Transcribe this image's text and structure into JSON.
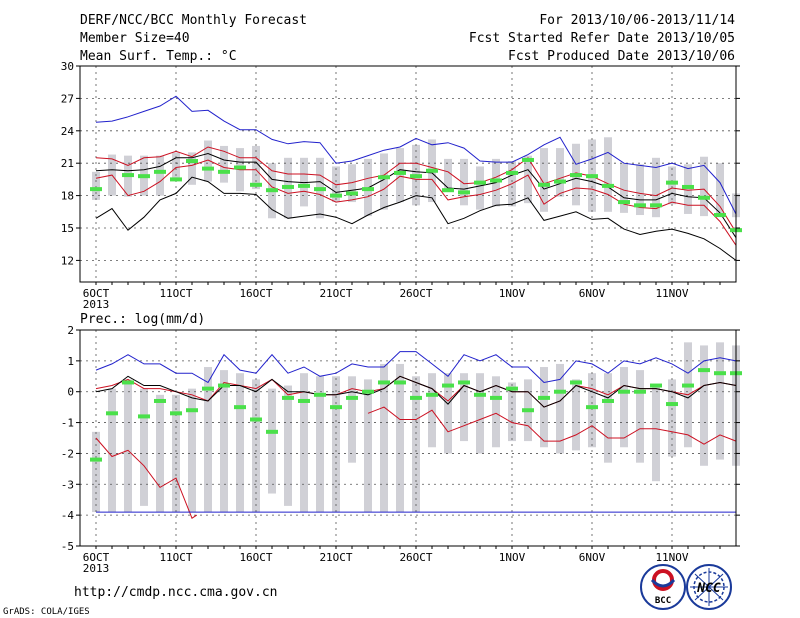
{
  "header": {
    "title_left": "DERF/NCC/BCC Monthly Forecast",
    "member_size": "Member Size=40",
    "title_right": "For 2013/10/06-2013/11/14",
    "fcst_started": "Fcst Started Refer Date 2013/10/05",
    "fcst_produced": "Fcst Produced Date 2013/10/06"
  },
  "footer": {
    "url": "http://cmdp.ncc.cma.gov.cn",
    "grads": "GrADS: COLA/IGES",
    "logo_bcc": "BCC",
    "logo_ncc": "NCC"
  },
  "colors": {
    "box": "#d0d0d6",
    "observed": "#4ae04a",
    "max_line": "#2222cc",
    "spread_line": "#cc1122",
    "mean_line": "#000000",
    "grid": "#555555"
  },
  "chart_data": [
    {
      "type": "line",
      "title": "Mean Surf. Temp.: °C",
      "ylim": [
        10,
        30
      ],
      "yticks": [
        12,
        15,
        18,
        21,
        24,
        27,
        30
      ],
      "x_labels": [
        {
          "day": 1,
          "text": "6OCT",
          "sub": "2013"
        },
        {
          "day": 6,
          "text": "11OCT"
        },
        {
          "day": 11,
          "text": "16OCT"
        },
        {
          "day": 16,
          "text": "21OCT"
        },
        {
          "day": 21,
          "text": "26OCT"
        },
        {
          "day": 27,
          "text": "1NOV"
        },
        {
          "day": 32,
          "text": "6NOV"
        },
        {
          "day": 37,
          "text": "11NOV"
        }
      ],
      "x_range": [
        0,
        41
      ],
      "boxes": [
        [
          17.6,
          20.2
        ],
        [
          18.0,
          21.8
        ],
        [
          17.9,
          21.7
        ],
        [
          18.0,
          21.7
        ],
        [
          18.0,
          21.7
        ],
        [
          19.5,
          22.0
        ],
        [
          19.0,
          22.0
        ],
        [
          19.3,
          23.1
        ],
        [
          19.2,
          22.6
        ],
        [
          18.4,
          22.4
        ],
        [
          18.6,
          22.6
        ],
        [
          15.9,
          21.0
        ],
        [
          15.9,
          21.5
        ],
        [
          17.0,
          21.5
        ],
        [
          15.9,
          21.5
        ],
        [
          17.4,
          20.7
        ],
        [
          17.4,
          20.9
        ],
        [
          16.1,
          21.4
        ],
        [
          16.7,
          21.9
        ],
        [
          17.4,
          22.4
        ],
        [
          17.1,
          22.7
        ],
        [
          17.4,
          23.2
        ],
        [
          18.6,
          21.4
        ],
        [
          17.1,
          21.4
        ],
        [
          16.7,
          20.7
        ],
        [
          17.0,
          21.4
        ],
        [
          17.0,
          21.2
        ],
        [
          17.3,
          21.7
        ],
        [
          16.5,
          22.4
        ],
        [
          17.9,
          22.4
        ],
        [
          17.1,
          22.8
        ],
        [
          16.5,
          23.2
        ],
        [
          16.5,
          23.4
        ],
        [
          16.4,
          21.0
        ],
        [
          16.2,
          20.9
        ],
        [
          16.0,
          21.5
        ],
        [
          17.2,
          20.7
        ],
        [
          16.3,
          20.9
        ],
        [
          16.1,
          21.6
        ],
        [
          16.0,
          21.0
        ],
        [
          16.0,
          18.2
        ]
      ],
      "series": [
        {
          "role": "ensemble-max",
          "values": [
            24.8,
            24.9,
            25.3,
            25.8,
            26.3,
            27.2,
            25.8,
            25.9,
            24.9,
            24.1,
            24.1,
            23.2,
            22.8,
            23.0,
            22.9,
            21.0,
            21.2,
            21.7,
            22.2,
            22.5,
            23.3,
            22.7,
            22.9,
            22.4,
            21.2,
            21.1,
            21.1,
            21.8,
            22.7,
            23.4,
            20.9,
            21.4,
            22.0,
            21.0,
            20.8,
            20.6,
            21.0,
            20.5,
            20.8,
            19.2,
            16.3
          ]
        },
        {
          "role": "ensemble-upper",
          "values": [
            21.5,
            21.4,
            20.8,
            21.5,
            21.6,
            22.1,
            21.6,
            22.5,
            22.1,
            21.5,
            21.5,
            20.3,
            20.0,
            20.0,
            19.9,
            19.0,
            19.2,
            19.6,
            19.9,
            21.0,
            21.0,
            20.6,
            20.2,
            19.1,
            19.2,
            19.7,
            20.4,
            21.5,
            19.1,
            19.6,
            20.1,
            19.8,
            19.1,
            18.5,
            18.2,
            18.0,
            18.7,
            18.5,
            18.6,
            17.0,
            14.6
          ]
        },
        {
          "role": "ensemble-mean",
          "values": [
            20.3,
            20.4,
            20.3,
            20.4,
            20.7,
            21.5,
            21.5,
            21.9,
            21.3,
            21.1,
            21.1,
            19.5,
            19.3,
            19.2,
            19.3,
            18.3,
            18.5,
            18.7,
            19.5,
            20.4,
            20.2,
            20.1,
            18.7,
            18.6,
            18.9,
            19.2,
            19.9,
            20.4,
            18.6,
            19.1,
            19.6,
            19.3,
            18.8,
            17.8,
            17.6,
            17.6,
            18.2,
            17.9,
            17.8,
            16.4,
            14.1
          ]
        },
        {
          "role": "ensemble-lower",
          "values": [
            19.6,
            19.9,
            18.0,
            18.4,
            19.3,
            20.6,
            20.8,
            21.3,
            20.6,
            20.4,
            20.4,
            18.8,
            18.2,
            18.4,
            18.1,
            17.4,
            17.6,
            17.9,
            18.6,
            19.8,
            19.5,
            19.5,
            17.6,
            17.9,
            18.1,
            18.5,
            19.1,
            19.9,
            17.2,
            18.2,
            18.7,
            18.6,
            18.1,
            17.2,
            16.9,
            16.8,
            17.4,
            17.1,
            17.1,
            15.6,
            13.4
          ]
        },
        {
          "role": "ensemble-min",
          "values": [
            15.9,
            16.8,
            14.8,
            16.0,
            17.6,
            18.2,
            19.7,
            19.3,
            18.2,
            18.2,
            18.1,
            16.7,
            15.9,
            16.1,
            16.3,
            16.0,
            15.4,
            16.2,
            16.9,
            17.4,
            18.0,
            17.8,
            15.4,
            15.9,
            16.6,
            17.1,
            17.2,
            17.8,
            15.7,
            16.1,
            16.5,
            15.8,
            15.9,
            14.9,
            14.4,
            14.7,
            14.9,
            14.5,
            14.0,
            13.1,
            12.0
          ]
        }
      ],
      "observed": [
        18.6,
        null,
        19.9,
        19.8,
        20.2,
        19.5,
        21.2,
        20.5,
        20.2,
        20.6,
        19.0,
        18.5,
        18.8,
        18.9,
        18.6,
        18.0,
        18.2,
        18.6,
        19.7,
        20.1,
        19.8,
        20.3,
        18.5,
        18.3,
        19.2,
        19.4,
        20.1,
        21.3,
        19.0,
        19.3,
        19.9,
        19.8,
        18.9,
        17.4,
        17.1,
        17.1,
        19.2,
        18.8,
        17.8,
        16.2,
        14.8
      ]
    },
    {
      "type": "line",
      "title": "Prec.: log(mm/d)",
      "ylim": [
        -5,
        2
      ],
      "yticks": [
        -5,
        -4,
        -3,
        -2,
        -1,
        0,
        1,
        2
      ],
      "x_labels": [
        {
          "day": 1,
          "text": "6OCT",
          "sub": "2013"
        },
        {
          "day": 6,
          "text": "11OCT"
        },
        {
          "day": 11,
          "text": "16OCT"
        },
        {
          "day": 16,
          "text": "21OCT"
        },
        {
          "day": 21,
          "text": "26OCT"
        },
        {
          "day": 27,
          "text": "1NOV"
        },
        {
          "day": 32,
          "text": "6NOV"
        },
        {
          "day": 37,
          "text": "11NOV"
        }
      ],
      "x_range": [
        0,
        41
      ],
      "boxes": [
        [
          -3.9,
          -1.3
        ],
        [
          -3.9,
          0.1
        ],
        [
          -3.9,
          0.4
        ],
        [
          -3.7,
          0.1
        ],
        [
          -3.9,
          -0.1
        ],
        [
          -3.9,
          -0.1
        ],
        [
          -3.9,
          0.1
        ],
        [
          -3.9,
          0.8
        ],
        [
          -3.9,
          0.7
        ],
        [
          -3.9,
          0.6
        ],
        [
          -3.9,
          0.4
        ],
        [
          -3.3,
          0.1
        ],
        [
          -3.7,
          0.2
        ],
        [
          -3.9,
          0.6
        ],
        [
          -3.9,
          0.5
        ],
        [
          -3.9,
          0.5
        ],
        [
          -2.3,
          0.5
        ],
        [
          -3.9,
          0.4
        ],
        [
          -3.9,
          0.9
        ],
        [
          -3.9,
          0.9
        ],
        [
          -3.9,
          0.5
        ],
        [
          -1.8,
          0.6
        ],
        [
          -2.0,
          0.6
        ],
        [
          -1.6,
          0.6
        ],
        [
          -2.0,
          0.6
        ],
        [
          -1.8,
          0.5
        ],
        [
          -1.6,
          0.3
        ],
        [
          -1.6,
          0.4
        ],
        [
          -1.8,
          0.8
        ],
        [
          -2.0,
          0.9
        ],
        [
          -1.9,
          0.4
        ],
        [
          -1.8,
          0.6
        ],
        [
          -2.3,
          0.6
        ],
        [
          -1.8,
          0.8
        ],
        [
          -2.3,
          0.7
        ],
        [
          -2.9,
          0.2
        ],
        [
          -2.1,
          0.4
        ],
        [
          -1.8,
          1.6
        ],
        [
          -2.4,
          1.5
        ],
        [
          -2.2,
          1.6
        ],
        [
          -2.4,
          1.5
        ]
      ],
      "series": [
        {
          "role": "ensemble-max",
          "values": [
            0.7,
            0.9,
            1.2,
            0.9,
            0.9,
            0.6,
            0.6,
            0.3,
            1.2,
            0.7,
            0.6,
            1.2,
            0.6,
            0.8,
            0.5,
            0.6,
            0.9,
            0.8,
            0.8,
            1.3,
            1.3,
            0.9,
            0.5,
            1.2,
            1.0,
            1.2,
            0.8,
            0.8,
            0.3,
            0.4,
            1.0,
            0.9,
            0.6,
            1.0,
            0.9,
            1.1,
            0.9,
            0.6,
            1.0,
            1.1,
            1.0
          ]
        },
        {
          "role": "ensemble-upper",
          "values": [
            0.1,
            0.2,
            0.4,
            0.1,
            0.1,
            0.0,
            -0.1,
            -0.3,
            0.3,
            0.2,
            0.1,
            0.4,
            -0.1,
            0.0,
            -0.1,
            -0.1,
            0.1,
            0.0,
            0.1,
            0.5,
            0.3,
            0.1,
            -0.3,
            0.2,
            0.0,
            0.2,
            0.0,
            0.0,
            -0.5,
            -0.3,
            0.2,
            0.1,
            -0.1,
            0.2,
            0.1,
            0.1,
            0.0,
            -0.1,
            0.2,
            0.3,
            0.2
          ]
        },
        {
          "role": "ensemble-mean",
          "values": [
            0.0,
            0.1,
            0.5,
            0.2,
            0.2,
            0.0,
            -0.2,
            -0.3,
            0.2,
            0.2,
            0.0,
            0.4,
            0.0,
            0.0,
            -0.1,
            -0.1,
            0.0,
            -0.1,
            0.1,
            0.5,
            0.3,
            0.1,
            -0.4,
            0.2,
            0.0,
            0.2,
            0.0,
            0.0,
            -0.5,
            -0.3,
            0.2,
            0.0,
            -0.2,
            0.2,
            0.1,
            0.1,
            0.0,
            -0.2,
            0.2,
            0.3,
            0.2
          ]
        },
        {
          "role": "ensemble-lower",
          "values": [
            -1.5,
            -2.1,
            -1.9,
            -2.4,
            -3.1,
            -2.8,
            -4.1,
            null,
            null,
            null,
            null,
            null,
            null,
            null,
            null,
            null,
            null,
            -0.7,
            -0.5,
            -0.9,
            -0.9,
            -0.6,
            -1.3,
            -1.1,
            -0.9,
            -0.7,
            -1.0,
            -1.1,
            -1.6,
            -1.6,
            -1.4,
            -1.1,
            -1.5,
            -1.5,
            -1.2,
            -1.2,
            -1.3,
            -1.4,
            -1.7,
            -1.4,
            -1.6
          ]
        },
        {
          "role": "floor",
          "values": [
            -3.9,
            -3.9,
            -3.9,
            -3.9,
            -3.9,
            -3.9,
            -3.9,
            -3.9,
            -3.9,
            -3.9,
            -3.9,
            -3.9,
            -3.9,
            -3.9,
            -3.9,
            -3.9,
            -3.9,
            -3.9,
            -3.9,
            -3.9,
            -3.9,
            -3.9,
            -3.9,
            -3.9,
            -3.9,
            -3.9,
            -3.9,
            -3.9,
            -3.9,
            -3.9,
            -3.9,
            -3.9,
            -3.9,
            -3.9,
            -3.9,
            -3.9,
            -3.9,
            -3.9,
            -3.9,
            -3.9,
            -3.9
          ]
        }
      ],
      "observed": [
        -2.2,
        -0.7,
        0.3,
        -0.8,
        -0.3,
        -0.7,
        -0.6,
        0.1,
        0.2,
        -0.5,
        -0.9,
        -1.3,
        -0.2,
        -0.3,
        -0.1,
        -0.5,
        -0.2,
        0.0,
        0.3,
        0.3,
        -0.2,
        -0.1,
        0.2,
        0.3,
        -0.1,
        -0.2,
        0.1,
        -0.6,
        -0.2,
        0.0,
        0.3,
        -0.5,
        -0.3,
        0.0,
        0.0,
        0.2,
        -0.4,
        0.2,
        0.7,
        0.6,
        0.6
      ]
    }
  ]
}
